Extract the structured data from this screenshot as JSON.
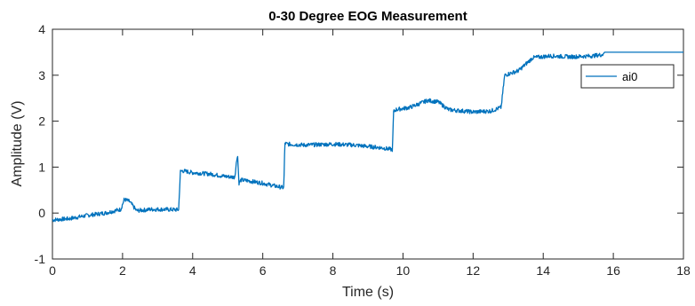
{
  "chart_data": {
    "type": "line",
    "title": "0-30 Degree EOG Measurement",
    "xlabel": "Time (s)",
    "ylabel": "Amplitude (V)",
    "xlim": [
      0,
      18
    ],
    "ylim": [
      -1,
      4
    ],
    "xticks": [
      "0",
      "2",
      "4",
      "6",
      "8",
      "10",
      "12",
      "14",
      "16",
      "18"
    ],
    "yticks": [
      "-1",
      "0",
      "1",
      "2",
      "3",
      "4"
    ],
    "grid": false,
    "legend_position": "top-right",
    "series": [
      {
        "name": "ai0",
        "color": "#0072BD",
        "x": [
          0,
          0.5,
          1.0,
          1.5,
          1.95,
          2.05,
          2.2,
          2.4,
          2.8,
          3.2,
          3.6,
          3.65,
          3.7,
          4.0,
          4.5,
          4.9,
          5.2,
          5.28,
          5.32,
          5.38,
          5.6,
          6.0,
          6.4,
          6.6,
          6.63,
          6.7,
          7.2,
          8.0,
          8.6,
          9.0,
          9.4,
          9.7,
          9.73,
          9.8,
          10.2,
          10.7,
          11.0,
          11.3,
          12.0,
          12.5,
          12.8,
          12.85,
          12.9,
          13.3,
          13.7,
          14.2,
          14.8,
          15.4,
          15.7,
          15.75,
          16.5,
          17.2,
          18.0
        ],
        "y": [
          -0.15,
          -0.12,
          -0.05,
          0.0,
          0.08,
          0.3,
          0.25,
          0.05,
          0.08,
          0.08,
          0.07,
          0.9,
          0.92,
          0.88,
          0.85,
          0.8,
          0.78,
          1.3,
          0.65,
          0.72,
          0.7,
          0.65,
          0.58,
          0.55,
          1.52,
          1.5,
          1.48,
          1.5,
          1.48,
          1.45,
          1.42,
          1.38,
          2.2,
          2.25,
          2.3,
          2.45,
          2.42,
          2.25,
          2.2,
          2.22,
          2.3,
          2.65,
          3.0,
          3.1,
          3.38,
          3.42,
          3.4,
          3.42,
          3.45,
          3.5,
          3.5,
          3.5,
          3.5
        ]
      }
    ]
  }
}
